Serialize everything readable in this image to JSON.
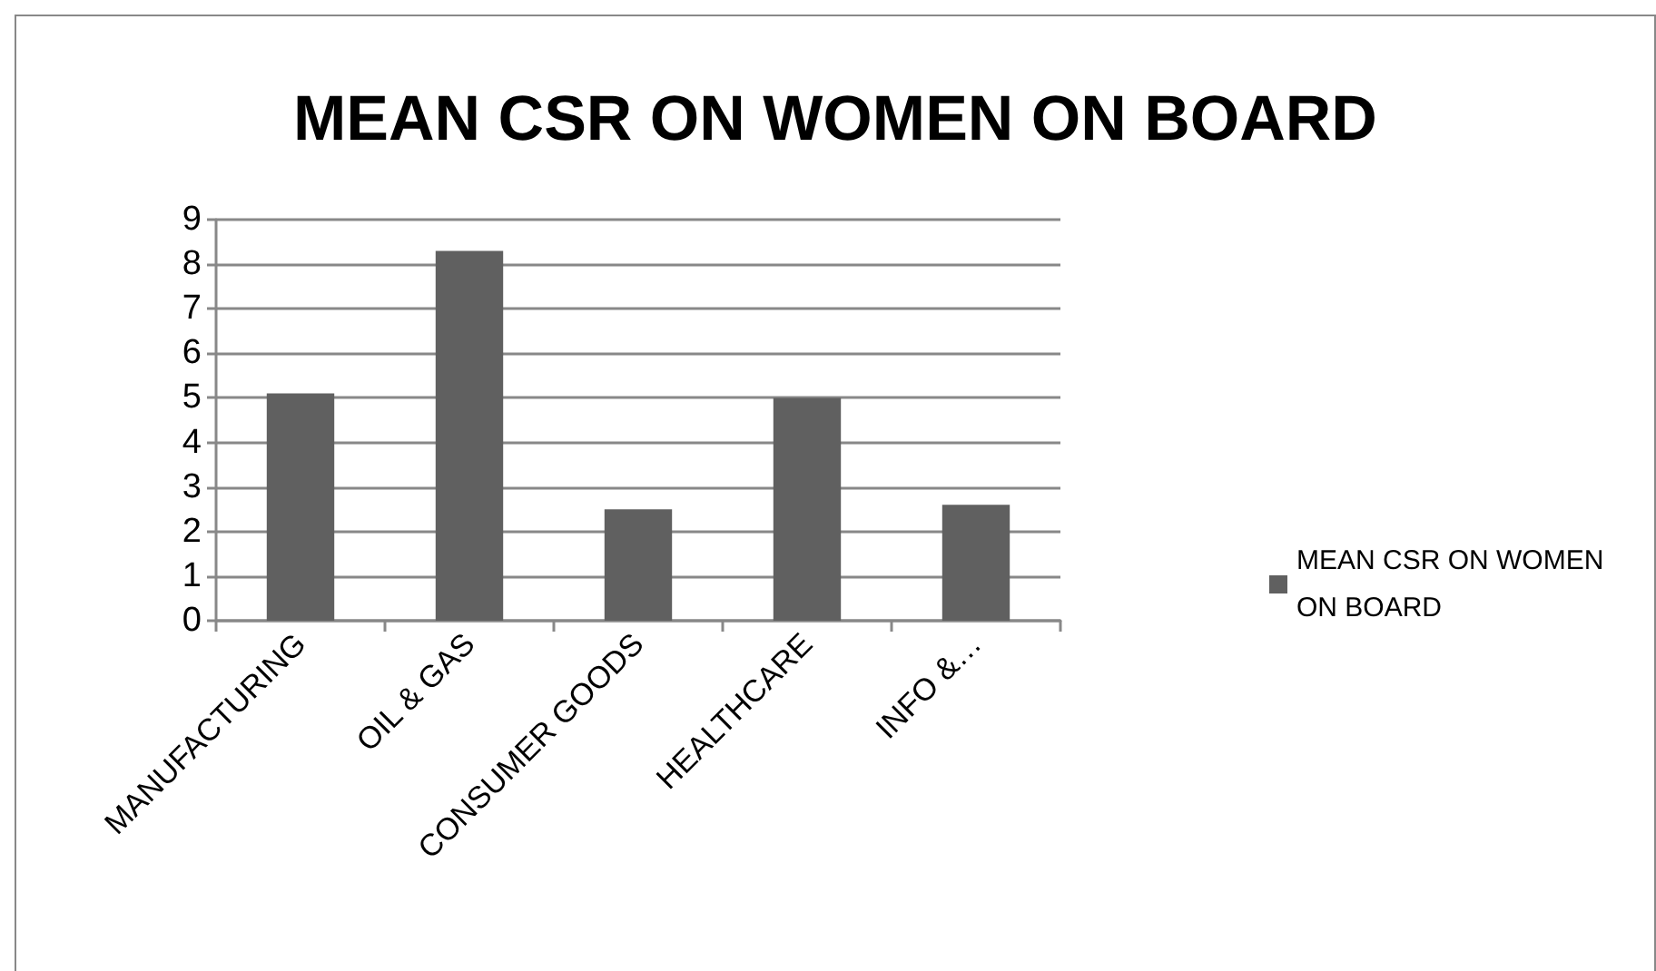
{
  "chart_data": {
    "type": "bar",
    "title": "MEAN CSR ON WOMEN ON BOARD",
    "categories": [
      "MANUFACTURING",
      "OIL & GAS",
      "CONSUMER GOODS",
      "HEALTHCARE",
      "INFO &…"
    ],
    "series": [
      {
        "name": "MEAN CSR ON WOMEN ON BOARD",
        "color": "#606060",
        "values": [
          5.1,
          8.3,
          2.5,
          5.0,
          2.6
        ]
      }
    ],
    "ylim": [
      0,
      9
    ],
    "yticks": [
      0,
      1,
      2,
      3,
      4,
      5,
      6,
      7,
      8,
      9
    ],
    "grid": "y",
    "legend": "right"
  }
}
